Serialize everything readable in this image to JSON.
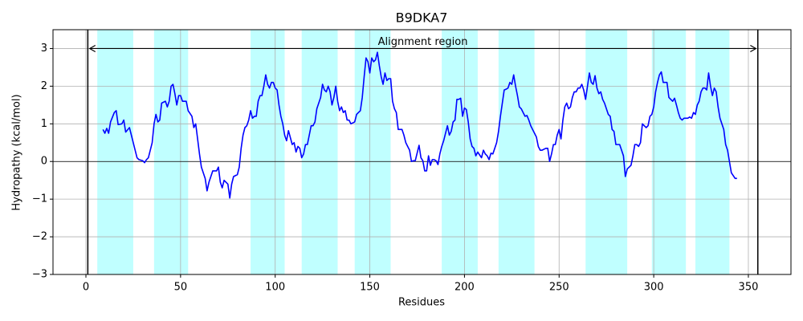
{
  "chart_data": {
    "type": "line",
    "title": "B9DKA7",
    "x_label": "Residues",
    "y_label": "Hydropathy (kcal/mol)",
    "xlim": [
      -17.4,
      372.5
    ],
    "ylim": [
      -3,
      3.5
    ],
    "xticks": [
      0,
      50,
      100,
      150,
      200,
      250,
      300,
      350
    ],
    "yticks": [
      {
        "value": -3,
        "label": "−3"
      },
      {
        "value": -2,
        "label": "−2"
      },
      {
        "value": -1,
        "label": "−1"
      },
      0,
      1,
      2,
      3
    ],
    "grid": true,
    "grid_color": "#b0b0b0",
    "region_color": "#c0ffff",
    "line_color": "#000000",
    "shaded_regions": [
      {
        "start": 6,
        "end": 25
      },
      {
        "start": 36,
        "end": 54
      },
      {
        "start": 87,
        "end": 105
      },
      {
        "start": 114,
        "end": 133
      },
      {
        "start": 142,
        "end": 161
      },
      {
        "start": 188,
        "end": 207
      },
      {
        "start": 218,
        "end": 237
      },
      {
        "start": 264,
        "end": 286
      },
      {
        "start": 299,
        "end": 317
      },
      {
        "start": 322,
        "end": 340
      }
    ],
    "vlines": [
      1,
      355
    ],
    "hline": 0,
    "annotation": {
      "text": "Alignment region",
      "x_start": 2,
      "x_end": 354,
      "y": 3
    },
    "series": [
      {
        "color": "#0000ff",
        "x": [
          9,
          10,
          11,
          12,
          13,
          15,
          16,
          17,
          19,
          20,
          21,
          23,
          24,
          25,
          27,
          28,
          30,
          31,
          32,
          33,
          35,
          36,
          37,
          38,
          39,
          40,
          42,
          43,
          44,
          45,
          46,
          47,
          48,
          49,
          50,
          51,
          53,
          54,
          56,
          57,
          58,
          59,
          60,
          61,
          63,
          64,
          65,
          66,
          67,
          69,
          70,
          71,
          72,
          73,
          75,
          76,
          77,
          78,
          80,
          81,
          82,
          83,
          84,
          85,
          86,
          87,
          88,
          89,
          90,
          91,
          92,
          93,
          94,
          95,
          96,
          97,
          98,
          99,
          100,
          101,
          102,
          103,
          104,
          105,
          106,
          107,
          109,
          110,
          111,
          112,
          113,
          114,
          115,
          116,
          117,
          118,
          119,
          120,
          121,
          122,
          123,
          124,
          125,
          126,
          127,
          128,
          129,
          130,
          131,
          132,
          133,
          134,
          135,
          136,
          137,
          138,
          139,
          140,
          142,
          143,
          144,
          145,
          146,
          147,
          148,
          149,
          150,
          151,
          152,
          153,
          154,
          155,
          156,
          157,
          158,
          159,
          160,
          161,
          162,
          163,
          164,
          165,
          166,
          167,
          168,
          169,
          170,
          171,
          172,
          173,
          174,
          176,
          177,
          178,
          179,
          180,
          181,
          182,
          183,
          184,
          185,
          186,
          187,
          188,
          189,
          190,
          191,
          192,
          193,
          194,
          195,
          196,
          197,
          198,
          199,
          200,
          201,
          202,
          203,
          204,
          205,
          206,
          207,
          209,
          210,
          211,
          212,
          213,
          214,
          215,
          216,
          217,
          218,
          219,
          220,
          221,
          222,
          223,
          224,
          225,
          226,
          227,
          228,
          229,
          230,
          231,
          232,
          233,
          234,
          235,
          236,
          237,
          238,
          239,
          240,
          241,
          243,
          244,
          245,
          246,
          247,
          248,
          249,
          250,
          251,
          252,
          253,
          254,
          255,
          256,
          257,
          258,
          259,
          260,
          261,
          262,
          263,
          264,
          265,
          266,
          267,
          268,
          269,
          270,
          271,
          272,
          273,
          274,
          276,
          277,
          278,
          279,
          280,
          281,
          282,
          283,
          284,
          285,
          286,
          287,
          288,
          289,
          290,
          291,
          292,
          293,
          294,
          295,
          296,
          297,
          298,
          299,
          300,
          301,
          302,
          303,
          304,
          305,
          306,
          307,
          308,
          310,
          311,
          312,
          313,
          314,
          315,
          316,
          317,
          318,
          319,
          320,
          321,
          322,
          323,
          324,
          325,
          326,
          327,
          328,
          329,
          330,
          331,
          332,
          333,
          334,
          335,
          336,
          337,
          338,
          339,
          340,
          341,
          343,
          344
        ],
        "values": [
          0.85,
          0.75,
          0.88,
          0.75,
          1.05,
          1.3,
          1.35,
          0.98,
          1.0,
          1.1,
          0.78,
          0.9,
          0.7,
          0.5,
          0.1,
          0.05,
          0.02,
          -0.03,
          0.05,
          0.1,
          0.5,
          1.0,
          1.25,
          1.05,
          1.1,
          1.55,
          1.6,
          1.45,
          1.6,
          2.0,
          2.05,
          1.8,
          1.5,
          1.75,
          1.75,
          1.6,
          1.6,
          1.35,
          1.2,
          0.9,
          1.0,
          0.6,
          0.2,
          -0.15,
          -0.45,
          -0.78,
          -0.55,
          -0.4,
          -0.25,
          -0.25,
          -0.15,
          -0.55,
          -0.7,
          -0.5,
          -0.6,
          -0.97,
          -0.6,
          -0.4,
          -0.35,
          -0.15,
          0.35,
          0.7,
          0.9,
          0.95,
          1.1,
          1.35,
          1.15,
          1.2,
          1.2,
          1.6,
          1.75,
          1.75,
          2.0,
          2.3,
          2.05,
          1.95,
          2.1,
          2.1,
          1.95,
          1.9,
          1.5,
          1.2,
          1.0,
          0.7,
          0.55,
          0.82,
          0.45,
          0.5,
          0.25,
          0.4,
          0.35,
          0.1,
          0.2,
          0.45,
          0.45,
          0.7,
          0.95,
          0.95,
          1.05,
          1.4,
          1.55,
          1.7,
          2.05,
          1.9,
          1.85,
          2.0,
          1.85,
          1.5,
          1.7,
          2.0,
          1.6,
          1.35,
          1.45,
          1.3,
          1.35,
          1.1,
          1.1,
          1.0,
          1.05,
          1.25,
          1.3,
          1.35,
          1.7,
          2.25,
          2.75,
          2.65,
          2.35,
          2.75,
          2.65,
          2.7,
          2.9,
          2.55,
          2.25,
          2.05,
          2.35,
          2.15,
          2.2,
          2.2,
          1.6,
          1.4,
          1.3,
          0.85,
          0.85,
          0.85,
          0.7,
          0.5,
          0.4,
          0.3,
          0.0,
          0.02,
          0.02,
          0.43,
          0.1,
          0.02,
          -0.25,
          -0.25,
          0.15,
          -0.1,
          0.05,
          0.05,
          0.02,
          -0.08,
          0.2,
          0.4,
          0.55,
          0.75,
          0.95,
          0.7,
          0.8,
          1.05,
          1.1,
          1.65,
          1.65,
          1.68,
          1.2,
          1.42,
          1.38,
          1.05,
          0.6,
          0.4,
          0.35,
          0.15,
          0.25,
          0.1,
          0.3,
          0.2,
          0.15,
          0.05,
          0.22,
          0.2,
          0.35,
          0.5,
          0.8,
          1.2,
          1.55,
          1.9,
          1.92,
          1.95,
          2.1,
          2.05,
          2.3,
          2.0,
          1.75,
          1.45,
          1.4,
          1.3,
          1.2,
          1.22,
          1.1,
          0.95,
          0.85,
          0.75,
          0.65,
          0.4,
          0.3,
          0.3,
          0.35,
          0.35,
          0.0,
          0.2,
          0.45,
          0.45,
          0.7,
          0.85,
          0.6,
          1.1,
          1.45,
          1.55,
          1.4,
          1.45,
          1.7,
          1.85,
          1.85,
          1.95,
          1.95,
          2.05,
          1.9,
          1.65,
          2.0,
          2.35,
          2.1,
          2.05,
          2.28,
          1.95,
          1.8,
          1.85,
          1.65,
          1.55,
          1.25,
          1.2,
          0.85,
          0.8,
          0.45,
          0.45,
          0.45,
          0.3,
          0.15,
          -0.4,
          -0.2,
          -0.15,
          -0.1,
          0.15,
          0.45,
          0.45,
          0.4,
          0.5,
          1.0,
          0.95,
          0.9,
          0.95,
          1.2,
          1.25,
          1.45,
          1.85,
          2.1,
          2.3,
          2.38,
          2.1,
          2.1,
          2.1,
          1.7,
          1.6,
          1.68,
          1.5,
          1.3,
          1.15,
          1.1,
          1.15,
          1.15,
          1.15,
          1.18,
          1.15,
          1.3,
          1.25,
          1.5,
          1.6,
          1.85,
          1.95,
          1.95,
          1.9,
          2.35,
          2.0,
          1.75,
          1.95,
          1.85,
          1.45,
          1.15,
          1.0,
          0.85,
          0.45,
          0.3,
          0.0,
          -0.3,
          -0.45,
          -0.45
        ]
      }
    ]
  }
}
